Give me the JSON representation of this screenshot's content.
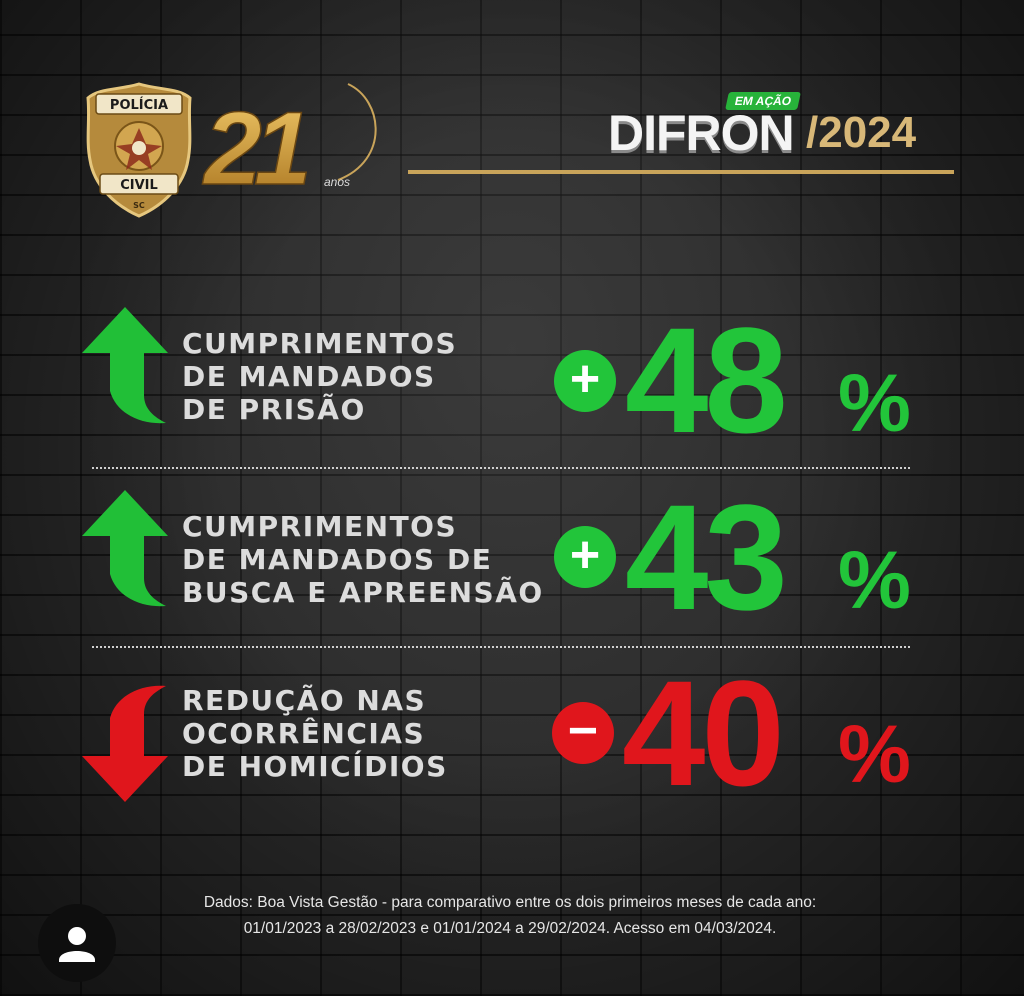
{
  "header": {
    "badge_top": "POLÍCIA",
    "badge_bottom": "CIVIL",
    "badge_state": "SC",
    "anniversary_number": "21",
    "anniversary_word": "anos",
    "program_tag": "EM AÇÃO",
    "program_name": "DIFRON",
    "program_year": "/2024",
    "colors": {
      "gold": "#c9a45a",
      "green": "#22c53a",
      "red": "#e0161c"
    }
  },
  "stats": [
    {
      "direction": "up",
      "lines": [
        "CUMPRIMENTOS",
        "DE MANDADOS",
        "DE PRISÃO"
      ],
      "sign": "+",
      "value": "48",
      "unit": "%"
    },
    {
      "direction": "up",
      "lines": [
        "CUMPRIMENTOS",
        "DE MANDADOS DE",
        "BUSCA E APREENSÃO"
      ],
      "sign": "+",
      "value": "43",
      "unit": "%"
    },
    {
      "direction": "down",
      "lines": [
        "REDUÇÃO NAS",
        "OCORRÊNCIAS",
        "DE HOMICÍDIOS"
      ],
      "sign": "−",
      "value": "40",
      "unit": "%"
    }
  ],
  "footer": {
    "line1": "Dados: Boa Vista Gestão - para comparativo entre os dois primeiros meses de cada ano:",
    "line2": "01/01/2023 a 28/02/2023  e 01/01/2024 a 29/02/2024. Acesso em 04/03/2024."
  },
  "overlay": {
    "profile_icon": "user-icon"
  }
}
